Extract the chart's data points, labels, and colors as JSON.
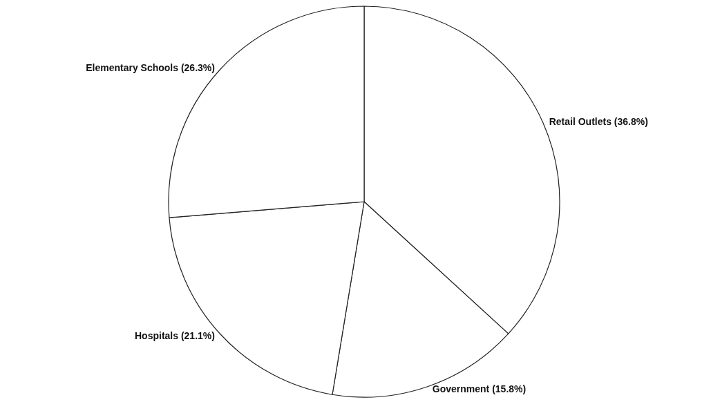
{
  "chart_data": {
    "type": "pie",
    "categories": [
      "Retail Outlets",
      "Government",
      "Hospitals",
      "Elementary Schools"
    ],
    "values": [
      36.8,
      15.8,
      21.1,
      26.3
    ],
    "value_labels": [
      "(36.8%)",
      "(15.8%)",
      "(21.1%)",
      "(26.3%)"
    ],
    "colors": [
      "#ffffff",
      "#ffffff",
      "#ffffff",
      "#ffffff"
    ],
    "legend": false
  }
}
